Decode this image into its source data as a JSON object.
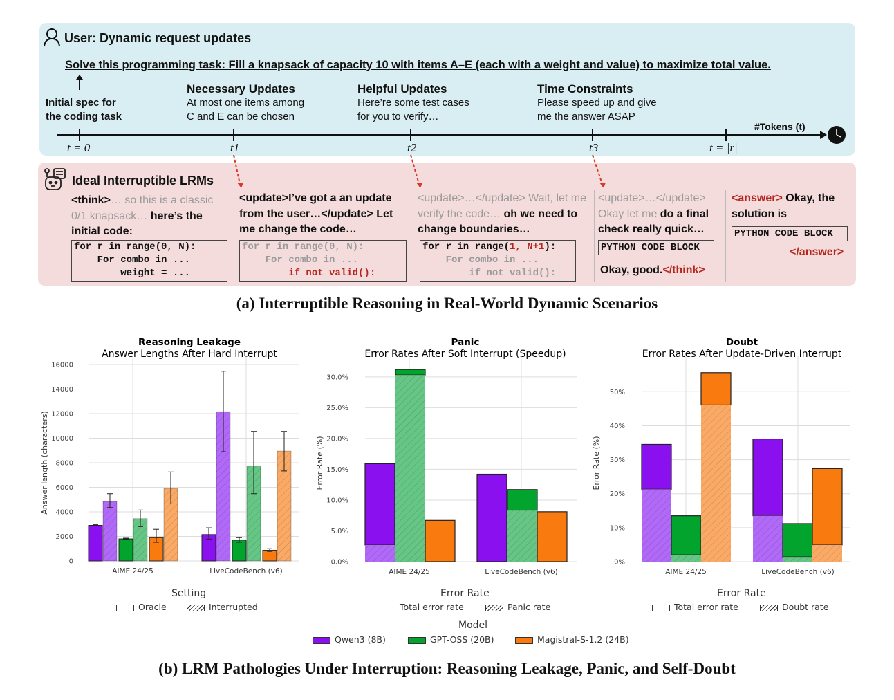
{
  "user_panel": {
    "title": "User: Dynamic request updates",
    "task": "Solve this programming task: Fill a knapsack of capacity 10 with items A–E (each with a weight and value) to maximize total value.",
    "initial_spec": [
      "Initial spec for",
      "the coding task"
    ],
    "updates": [
      {
        "title": "Necessary Updates",
        "lines": [
          "At most one items among",
          "C and E can be chosen"
        ]
      },
      {
        "title": "Helpful Updates",
        "lines": [
          "Here’re some test cases",
          "for you to verify…"
        ]
      },
      {
        "title": "Time Constraints",
        "lines": [
          "Please speed up and give",
          "me the answer ASAP"
        ]
      }
    ],
    "axis_label": "#Tokens (t)",
    "ticks": [
      "t = 0",
      "t1",
      "t2",
      "t3",
      "t = |r|"
    ],
    "icons": [
      "user-icon",
      "clock-icon"
    ]
  },
  "lrm_panel": {
    "title": "Ideal Interruptible LRMs",
    "icon": "robot-icon",
    "col1": {
      "a": "<think>",
      "b": "… so this is a classic 0/1 knapsack…",
      "c": " here’s the initial code:",
      "code": [
        "for r in range(0, N):",
        "    For combo in ...",
        "        weight = ..."
      ]
    },
    "col2": {
      "a": "<update>I’ve got a an update from the user…</update> Let me change the code…",
      "code": [
        "for r in range(0, N):",
        "    For combo in ..."
      ],
      "code_red": "        if not valid():"
    },
    "col3": {
      "a": "<update>…</update> Wait, let me verify the code…",
      "b": " oh we need to change boundaries…",
      "code_pre": "for r in range(",
      "code_red": "1, N+1",
      "code_post": "):",
      "code": [
        "    For combo in ...",
        "        if not valid():"
      ]
    },
    "col4": {
      "a": "<update>…</update> Okay let me",
      "b": " do a final check really quick…",
      "block": "PYTHON CODE BLOCK",
      "c": "Okay, good.",
      "d": "</think>"
    },
    "col5": {
      "a": "<answer>",
      "b": " Okay, the solution is",
      "block": "PYTHON CODE BLOCK",
      "c": "</answer>"
    }
  },
  "caption_a": "(a) Interruptible Reasoning in Real-World Dynamic Scenarios",
  "caption_b": "(b) LRM Pathologies Under Interruption: Reasoning Leakage, Panic, and Self-Doubt",
  "legend": {
    "setting_title": "Setting",
    "oracle": "Oracle",
    "interrupted": "Interrupted",
    "error_title": "Error Rate",
    "total": "Total error rate",
    "panic": "Panic rate",
    "doubt": "Doubt rate",
    "model_title": "Model",
    "models": [
      {
        "name": "Qwen3 (8B)",
        "color": "#8b10f0"
      },
      {
        "name": "GPT-OSS (20B)",
        "color": "#02a42e"
      },
      {
        "name": "Magistral-S-1.2 (24B)",
        "color": "#f97a0e"
      }
    ]
  },
  "chart_data": [
    {
      "type": "bar",
      "title": "Reasoning Leakage",
      "subtitle": "Answer Lengths After Hard Interrupt",
      "ylabel": "Answer length (characters)",
      "ylim": [
        0,
        16000
      ],
      "yticks": [
        "0",
        "2000",
        "4000",
        "6000",
        "8000",
        "10000",
        "12000",
        "14000",
        "16000"
      ],
      "categories": [
        "AIME 24/25",
        "LiveCodeBench (v6)"
      ],
      "grid": true,
      "series": [
        {
          "name": "Qwen3 (8B) Oracle",
          "values": [
            2900,
            2150
          ],
          "err_low": [
            2850,
            1780
          ],
          "err_high": [
            2950,
            2700
          ]
        },
        {
          "name": "Qwen3 (8B) Interrupted",
          "values": [
            4850,
            12150
          ],
          "err_low": [
            4350,
            8900
          ],
          "err_high": [
            5480,
            15450
          ]
        },
        {
          "name": "GPT-OSS (20B) Oracle",
          "values": [
            1800,
            1700
          ],
          "err_low": [
            1750,
            1520
          ],
          "err_high": [
            1860,
            1900
          ]
        },
        {
          "name": "GPT-OSS (20B) Interrupted",
          "values": [
            3450,
            7750
          ],
          "err_low": [
            2800,
            5480
          ],
          "err_high": [
            4150,
            10550
          ]
        },
        {
          "name": "Magistral-S-1.2 (24B) Oracle",
          "values": [
            1900,
            870
          ],
          "err_low": [
            1520,
            780
          ],
          "err_high": [
            2580,
            1000
          ]
        },
        {
          "name": "Magistral-S-1.2 (24B) Interrupted",
          "values": [
            5900,
            8950
          ],
          "err_low": [
            4650,
            7330
          ],
          "err_high": [
            7250,
            10550
          ]
        }
      ]
    },
    {
      "type": "bar",
      "stacked": true,
      "title": "Panic",
      "subtitle": "Error Rates After Soft Interrupt (Speedup)",
      "ylabel": "Error Rate (%)",
      "ylim": [
        0,
        32
      ],
      "yticks": [
        "0.0%",
        "5.0%",
        "10.0%",
        "15.0%",
        "20.0%",
        "25.0%",
        "30.0%"
      ],
      "categories": [
        "AIME 24/25",
        "LiveCodeBench (v6)"
      ],
      "grid": true,
      "series": [
        {
          "name": "Qwen3 (8B)",
          "total": [
            15.9,
            14.2
          ],
          "sub": [
            2.7,
            0
          ]
        },
        {
          "name": "GPT-OSS (20B)",
          "total": [
            31.2,
            11.7
          ],
          "sub": [
            30.3,
            8.3
          ]
        },
        {
          "name": "Magistral-S-1.2 (24B)",
          "total": [
            6.7,
            8.1
          ],
          "sub": [
            0,
            0
          ]
        }
      ]
    },
    {
      "type": "bar",
      "stacked": true,
      "title": "Doubt",
      "subtitle": "Error Rates After Update-Driven Interrupt",
      "ylabel": "Error Rate (%)",
      "ylim": [
        0,
        58
      ],
      "yticks": [
        "0%",
        "10%",
        "20%",
        "30%",
        "40%",
        "50%"
      ],
      "categories": [
        "AIME 24/25",
        "LiveCodeBench (v6)"
      ],
      "grid": true,
      "series": [
        {
          "name": "Qwen3 (8B)",
          "total": [
            34.5,
            36.1
          ],
          "sub": [
            21.3,
            13.5
          ]
        },
        {
          "name": "GPT-OSS (20B)",
          "total": [
            13.5,
            11.2
          ],
          "sub": [
            2.0,
            1.4
          ]
        },
        {
          "name": "Magistral-S-1.2 (24B)",
          "total": [
            55.6,
            27.4
          ],
          "sub": [
            46.1,
            4.9
          ]
        }
      ]
    }
  ]
}
